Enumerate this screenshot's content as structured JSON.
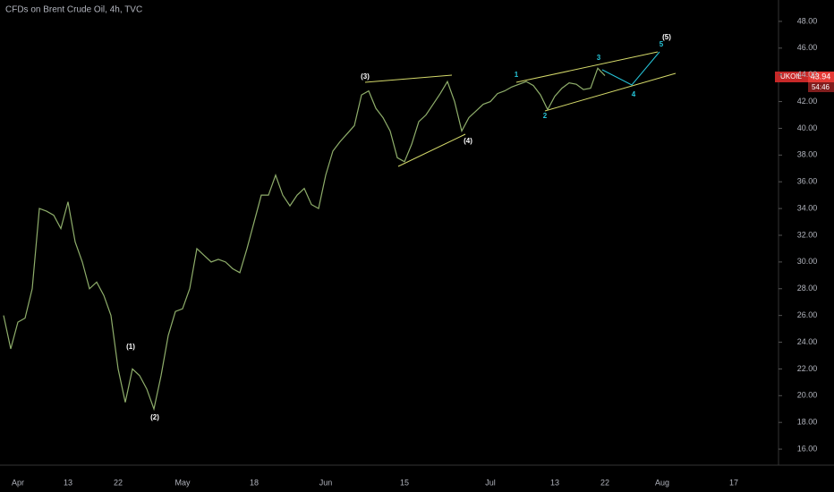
{
  "chart_data": {
    "type": "line",
    "title": "CFDs on Brent Crude Oil, 4h, TVC",
    "symbol": "UKOIL",
    "countdown": "54:46",
    "color": "#8fae6b",
    "trend_color": "#d4d96a",
    "projection_color": "#26c6da",
    "categories": [
      null,
      null,
      "Apr",
      null,
      null,
      null,
      null,
      null,
      null,
      "13",
      null,
      null,
      null,
      null,
      null,
      null,
      "22",
      null,
      null,
      null,
      null,
      null,
      null,
      null,
      null,
      "May",
      null,
      null,
      null,
      null,
      null,
      null,
      null,
      null,
      null,
      "18",
      null,
      null,
      null,
      null,
      null,
      null,
      null,
      null,
      null,
      "Jun",
      null,
      null,
      null,
      null,
      null,
      null,
      null,
      null,
      null,
      null,
      "15",
      null,
      null,
      null,
      null,
      null,
      null,
      null,
      null,
      null,
      null,
      null,
      "Jul",
      null,
      null,
      null,
      null,
      null,
      null,
      null,
      null,
      "13",
      null,
      null,
      null,
      null,
      null,
      null,
      "22",
      null,
      null,
      null,
      null,
      null,
      null,
      null,
      "Aug",
      null,
      null,
      null,
      null,
      null,
      null,
      null,
      null,
      null,
      "17",
      null,
      null,
      null,
      null,
      null,
      null
    ],
    "values": [
      26.0,
      23.5,
      25.5,
      25.8,
      28,
      34,
      33.8,
      33.5,
      32.5,
      34.5,
      31.5,
      30,
      28,
      28.5,
      27.5,
      26,
      22,
      19.5,
      22,
      21.5,
      20.5,
      19,
      21.5,
      24.5,
      26.3,
      26.5,
      28,
      31,
      30.5,
      30,
      30.2,
      30,
      29.5,
      29.2,
      31,
      33,
      35,
      35,
      36.5,
      35,
      34.2,
      35,
      35.5,
      34.3,
      34,
      36.5,
      38.3,
      39,
      39.6,
      40.2,
      42.5,
      42.8,
      41.5,
      40.8,
      39.8,
      37.8,
      37.5,
      38.8,
      40.5,
      41,
      41.8,
      42.6,
      43.5,
      42,
      39.8,
      40.8,
      41.3,
      41.8,
      42,
      42.6,
      42.8,
      43.1,
      43.3,
      43.5,
      43.2,
      42.5,
      41.4,
      42.4,
      43,
      43.4,
      43.3,
      42.9,
      43,
      44.5,
      43.94,
      null,
      null,
      null,
      null,
      null,
      null,
      null,
      null,
      null,
      null,
      null,
      null,
      null,
      null,
      null,
      null,
      null,
      null,
      null,
      null,
      null,
      null,
      null,
      null
    ],
    "annotations": [
      "(1)",
      "(2)",
      "(3)",
      "(4)",
      "(5)",
      "1",
      "2",
      "3",
      "4",
      "5"
    ],
    "ylim": [
      14.8,
      49.6
    ],
    "yticks": [
      {
        "value": 16,
        "label": "16.00"
      },
      {
        "value": 18,
        "label": "18.00"
      },
      {
        "value": 20,
        "label": "20.00"
      },
      {
        "value": 22,
        "label": "22.00"
      },
      {
        "value": 24,
        "label": "24.00"
      },
      {
        "value": 26,
        "label": "26.00"
      },
      {
        "value": 28,
        "label": "28.00"
      },
      {
        "value": 30,
        "label": "30.00"
      },
      {
        "value": 32,
        "label": "32.00"
      },
      {
        "value": 34,
        "label": "34.00"
      },
      {
        "value": 36,
        "label": "36.00"
      },
      {
        "value": 38,
        "label": "38.00"
      },
      {
        "value": 40,
        "label": "40.00"
      },
      {
        "value": 42,
        "label": "42.00"
      },
      {
        "value": 44,
        "label": "44.00"
      },
      {
        "value": 46,
        "label": "46.00"
      },
      {
        "value": 48,
        "label": "48.00"
      }
    ],
    "grid": false
  }
}
